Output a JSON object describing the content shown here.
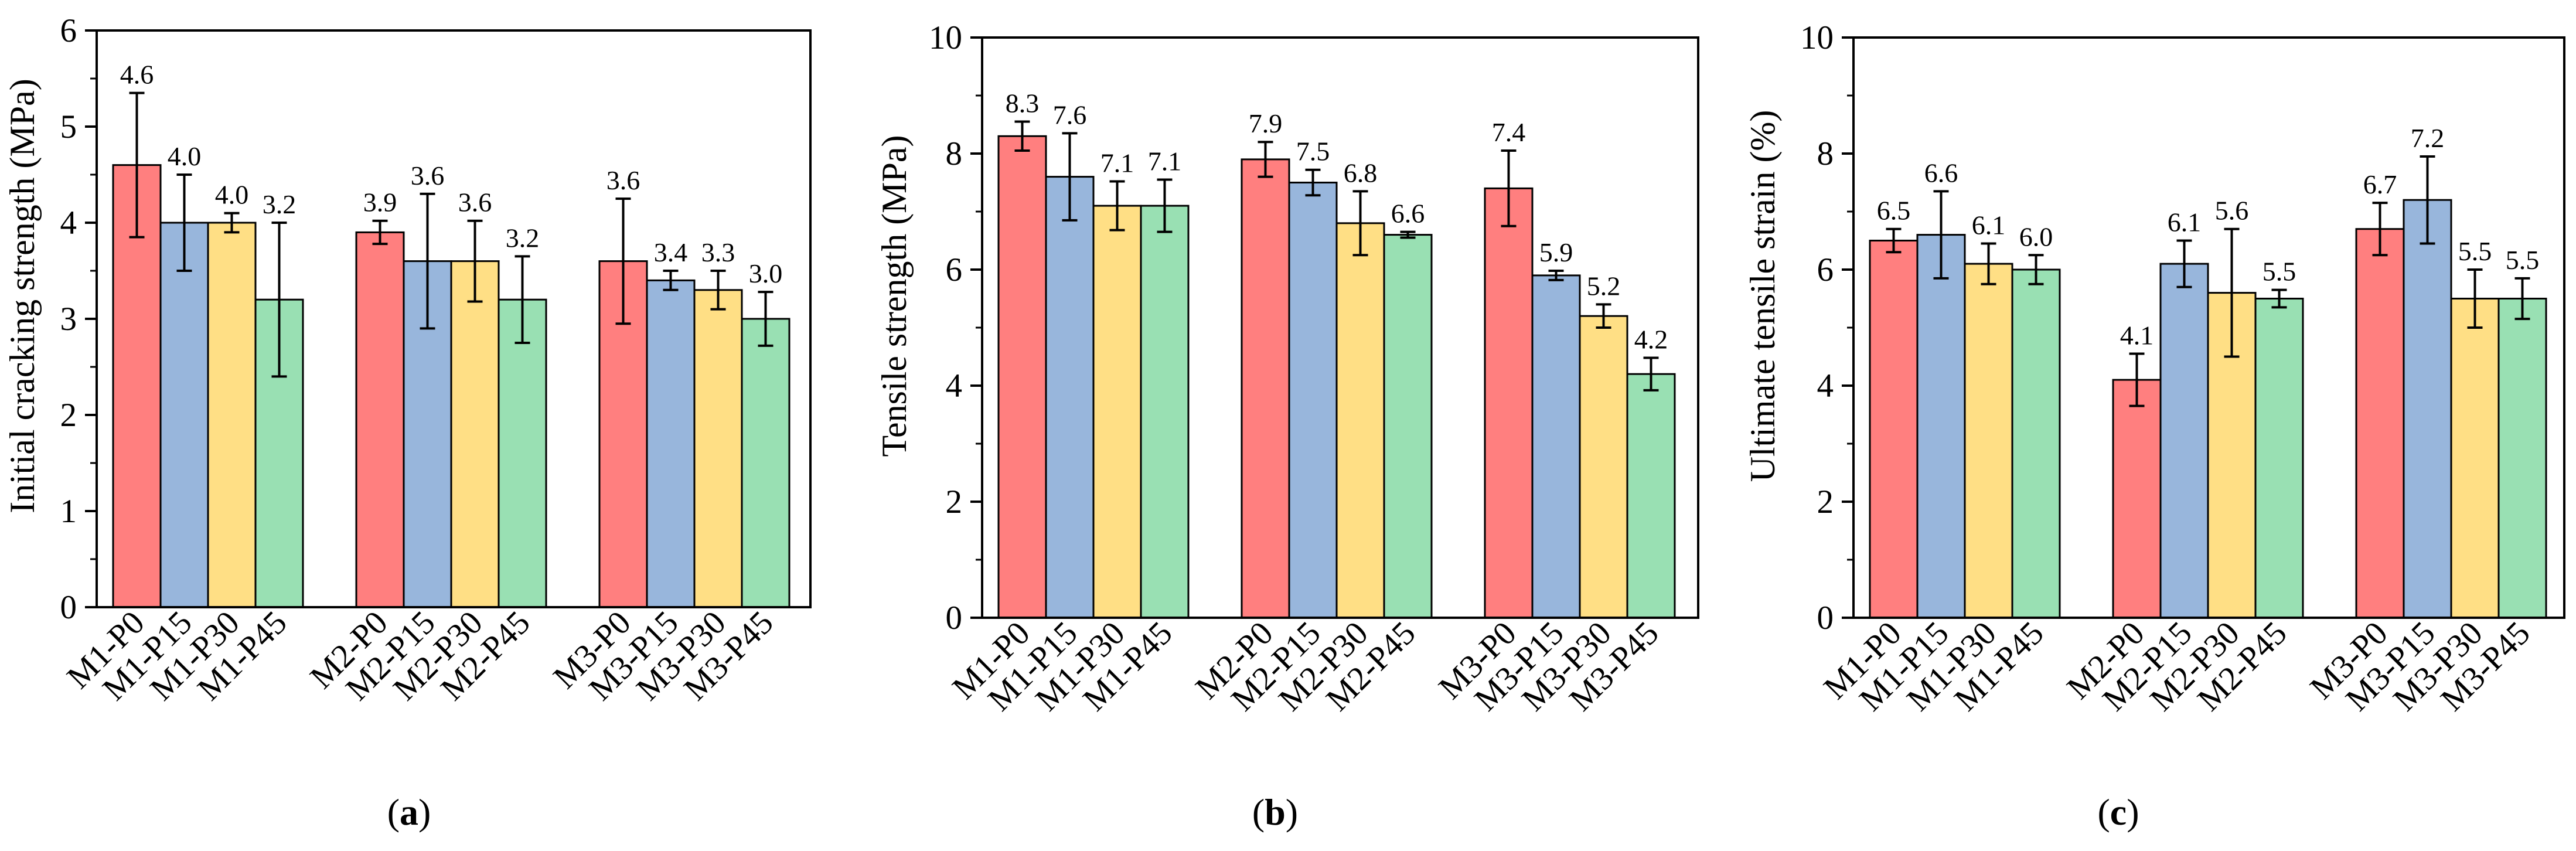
{
  "colors": {
    "P0": "#ff7f7f",
    "P15": "#98b6dc",
    "P30": "#ffdf85",
    "P45": "#99e0b3",
    "axis": "#000000"
  },
  "chart_data": [
    {
      "type": "bar",
      "panel": "(a)",
      "panel_letter": "a",
      "ylabel": "Initial cracking strength (MPa)",
      "ylim": [
        0,
        6
      ],
      "yticks": [
        0,
        1,
        2,
        3,
        4,
        5,
        6
      ],
      "groups": [
        {
          "name": "M1",
          "bars": [
            {
              "label": "M1-P0",
              "series": "P0",
              "value": 4.6,
              "error": 0.75,
              "value_label": "4.6"
            },
            {
              "label": "M1-P15",
              "series": "P15",
              "value": 4.0,
              "error": 0.5,
              "value_label": "4.0"
            },
            {
              "label": "M1-P30",
              "series": "P30",
              "value": 4.0,
              "error": 0.1,
              "value_label": "4.0"
            },
            {
              "label": "M1-P45",
              "series": "P45",
              "value": 3.2,
              "error": 0.8,
              "value_label": "3.2"
            }
          ]
        },
        {
          "name": "M2",
          "bars": [
            {
              "label": "M2-P0",
              "series": "P0",
              "value": 3.9,
              "error": 0.12,
              "value_label": "3.9"
            },
            {
              "label": "M2-P15",
              "series": "P15",
              "value": 3.6,
              "error": 0.7,
              "value_label": "3.6"
            },
            {
              "label": "M2-P30",
              "series": "P30",
              "value": 3.6,
              "error": 0.42,
              "value_label": "3.6"
            },
            {
              "label": "M2-P45",
              "series": "P45",
              "value": 3.2,
              "error": 0.45,
              "value_label": "3.2"
            }
          ]
        },
        {
          "name": "M3",
          "bars": [
            {
              "label": "M3-P0",
              "series": "P0",
              "value": 3.6,
              "error": 0.65,
              "value_label": "3.6"
            },
            {
              "label": "M3-P15",
              "series": "P15",
              "value": 3.4,
              "error": 0.1,
              "value_label": "3.4"
            },
            {
              "label": "M3-P30",
              "series": "P30",
              "value": 3.3,
              "error": 0.2,
              "value_label": "3.3"
            },
            {
              "label": "M3-P45",
              "series": "P45",
              "value": 3.0,
              "error": 0.28,
              "value_label": "3.0"
            }
          ]
        }
      ]
    },
    {
      "type": "bar",
      "panel": "(b)",
      "panel_letter": "b",
      "ylabel": "Tensile strength (MPa)",
      "ylim": [
        0,
        10
      ],
      "yticks": [
        0,
        2,
        4,
        6,
        8,
        10
      ],
      "groups": [
        {
          "name": "M1",
          "bars": [
            {
              "label": "M1-P0",
              "series": "P0",
              "value": 8.3,
              "error": 0.25,
              "value_label": "8.3"
            },
            {
              "label": "M1-P15",
              "series": "P15",
              "value": 7.6,
              "error": 0.75,
              "value_label": "7.6"
            },
            {
              "label": "M1-P30",
              "series": "P30",
              "value": 7.1,
              "error": 0.42,
              "value_label": "7.1"
            },
            {
              "label": "M1-P45",
              "series": "P45",
              "value": 7.1,
              "error": 0.45,
              "value_label": "7.1"
            }
          ]
        },
        {
          "name": "M2",
          "bars": [
            {
              "label": "M2-P0",
              "series": "P0",
              "value": 7.9,
              "error": 0.3,
              "value_label": "7.9"
            },
            {
              "label": "M2-P15",
              "series": "P15",
              "value": 7.5,
              "error": 0.22,
              "value_label": "7.5"
            },
            {
              "label": "M2-P30",
              "series": "P30",
              "value": 6.8,
              "error": 0.55,
              "value_label": "6.8"
            },
            {
              "label": "M2-P45",
              "series": "P45",
              "value": 6.6,
              "error": 0.05,
              "value_label": "6.6"
            }
          ]
        },
        {
          "name": "M3",
          "bars": [
            {
              "label": "M3-P0",
              "series": "P0",
              "value": 7.4,
              "error": 0.65,
              "value_label": "7.4"
            },
            {
              "label": "M3-P15",
              "series": "P15",
              "value": 5.9,
              "error": 0.08,
              "value_label": "5.9"
            },
            {
              "label": "M3-P30",
              "series": "P30",
              "value": 5.2,
              "error": 0.2,
              "value_label": "5.2"
            },
            {
              "label": "M3-P45",
              "series": "P45",
              "value": 4.2,
              "error": 0.28,
              "value_label": "4.2"
            }
          ]
        }
      ]
    },
    {
      "type": "bar",
      "panel": "(c)",
      "panel_letter": "c",
      "ylabel": "Ultimate tensile strain (%)",
      "ylim": [
        0,
        10
      ],
      "yticks": [
        0,
        2,
        4,
        6,
        8,
        10
      ],
      "groups": [
        {
          "name": "M1",
          "bars": [
            {
              "label": "M1-P0",
              "series": "P0",
              "value": 6.5,
              "error": 0.2,
              "value_label": "6.5"
            },
            {
              "label": "M1-P15",
              "series": "P15",
              "value": 6.6,
              "error": 0.75,
              "value_label": "6.6"
            },
            {
              "label": "M1-P30",
              "series": "P30",
              "value": 6.1,
              "error": 0.35,
              "value_label": "6.1"
            },
            {
              "label": "M1-P45",
              "series": "P45",
              "value": 6.0,
              "error": 0.25,
              "value_label": "6.0"
            }
          ]
        },
        {
          "name": "M2",
          "bars": [
            {
              "label": "M2-P0",
              "series": "P0",
              "value": 4.1,
              "error": 0.45,
              "value_label": "4.1"
            },
            {
              "label": "M2-P15",
              "series": "P15",
              "value": 6.1,
              "error": 0.4,
              "value_label": "6.1"
            },
            {
              "label": "M2-P30",
              "series": "P30",
              "value": 5.6,
              "error": 1.1,
              "value_label": "5.6"
            },
            {
              "label": "M2-P45",
              "series": "P45",
              "value": 5.5,
              "error": 0.15,
              "value_label": "5.5"
            }
          ]
        },
        {
          "name": "M3",
          "bars": [
            {
              "label": "M3-P0",
              "series": "P0",
              "value": 6.7,
              "error": 0.45,
              "value_label": "6.7"
            },
            {
              "label": "M3-P15",
              "series": "P15",
              "value": 7.2,
              "error": 0.75,
              "value_label": "7.2"
            },
            {
              "label": "M3-P30",
              "series": "P30",
              "value": 5.5,
              "error": 0.5,
              "value_label": "5.5"
            },
            {
              "label": "M3-P45",
              "series": "P45",
              "value": 5.5,
              "error": 0.35,
              "value_label": "5.5"
            }
          ]
        }
      ]
    }
  ]
}
